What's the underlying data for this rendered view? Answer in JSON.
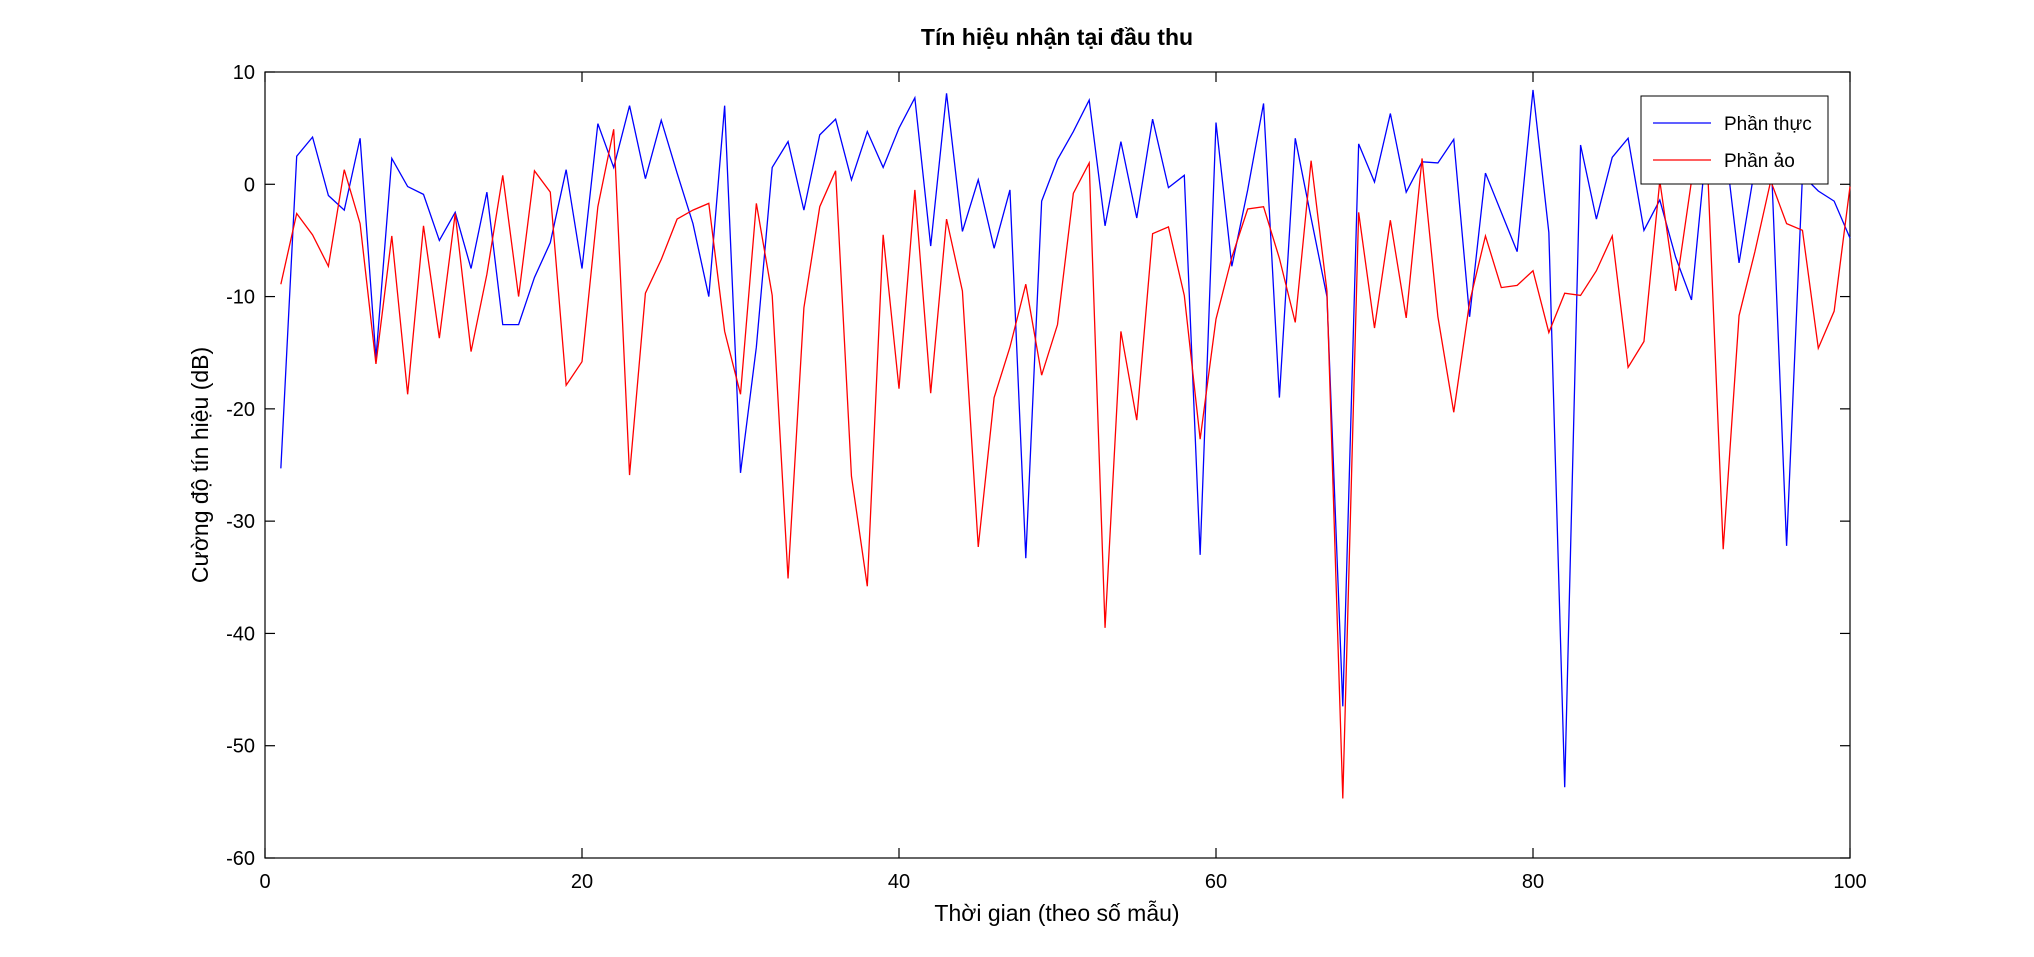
{
  "chart_data": {
    "type": "line",
    "title": "Tín hiệu nhận tại đầu thu",
    "xlabel": "Thời gian (theo số mẫu)",
    "ylabel": "Cường độ tín hiệu (dB)",
    "xlim": [
      0,
      100
    ],
    "ylim": [
      -60,
      10
    ],
    "xticks": [
      0,
      20,
      40,
      60,
      80,
      100
    ],
    "yticks": [
      10,
      0,
      -10,
      -20,
      -30,
      -40,
      -50,
      -60
    ],
    "grid": false,
    "legend_position": "top-right",
    "x": [
      1,
      2,
      3,
      4,
      5,
      6,
      7,
      8,
      9,
      10,
      11,
      12,
      13,
      14,
      15,
      16,
      17,
      18,
      19,
      20,
      21,
      22,
      23,
      24,
      25,
      26,
      27,
      28,
      29,
      30,
      31,
      32,
      33,
      34,
      35,
      36,
      37,
      38,
      39,
      40,
      41,
      42,
      43,
      44,
      45,
      46,
      47,
      48,
      49,
      50,
      51,
      52,
      53,
      54,
      55,
      56,
      57,
      58,
      59,
      60,
      61,
      62,
      63,
      64,
      65,
      66,
      67,
      68,
      69,
      70,
      71,
      72,
      73,
      74,
      75,
      76,
      77,
      78,
      79,
      80,
      81,
      82,
      83,
      84,
      85,
      86,
      87,
      88,
      89,
      90,
      91,
      92,
      93,
      94,
      95,
      96,
      97,
      98,
      99,
      100
    ],
    "series": [
      {
        "name": "Phần thực",
        "color": "#0000ff",
        "values": [
          -25.3,
          2.5,
          4.2,
          -1.0,
          -2.3,
          4.1,
          -15.5,
          2.3,
          -0.2,
          -0.9,
          -5.0,
          -2.5,
          -7.5,
          -0.7,
          -12.5,
          -12.5,
          -8.3,
          -5.2,
          1.3,
          -7.5,
          5.4,
          1.5,
          7.0,
          0.5,
          5.7,
          1.0,
          -3.5,
          -10.0,
          7.0,
          -25.7,
          -14.5,
          1.5,
          3.8,
          -2.3,
          4.4,
          5.8,
          0.4,
          4.7,
          1.5,
          5.0,
          7.7,
          -5.5,
          8.1,
          -4.2,
          0.4,
          -5.7,
          -0.5,
          -33.3,
          -1.5,
          2.2,
          4.7,
          7.5,
          -3.7,
          3.8,
          -3.0,
          5.8,
          -0.3,
          0.8,
          -33.0,
          5.5,
          -7.3,
          -0.5,
          7.2,
          -19.0,
          4.1,
          -3.0,
          -10.0,
          -46.5,
          3.6,
          0.2,
          6.3,
          -0.7,
          2.0,
          1.9,
          4.0,
          -11.8,
          1.0,
          -2.5,
          -6.0,
          8.4,
          -4.3,
          -53.7,
          3.5,
          -3.1,
          2.4,
          4.1,
          -4.1,
          -1.4,
          -6.5,
          -10.3,
          4.3,
          5.0,
          -7.0,
          1.5,
          3.2,
          -32.2,
          0.8,
          -0.6,
          -1.5,
          -4.8
        ]
      },
      {
        "name": "Phần ảo",
        "color": "#ff0000",
        "values": [
          -8.9,
          -2.6,
          -4.5,
          -7.3,
          1.3,
          -3.5,
          -16.0,
          -4.6,
          -18.7,
          -3.7,
          -13.7,
          -2.6,
          -14.9,
          -8.0,
          0.8,
          -10.0,
          1.2,
          -0.7,
          -17.9,
          -15.8,
          -2.0,
          4.9,
          -25.9,
          -9.7,
          -6.7,
          -3.1,
          -2.3,
          -1.7,
          -13.1,
          -18.7,
          -1.7,
          -9.9,
          -35.1,
          -11.0,
          -2.0,
          1.2,
          -26.0,
          -35.8,
          -4.5,
          -18.2,
          -0.5,
          -18.6,
          -3.1,
          -9.5,
          -32.3,
          -19.0,
          -14.5,
          -8.9,
          -17.0,
          -12.5,
          -0.8,
          1.9,
          -39.5,
          -13.1,
          -21.0,
          -4.4,
          -3.8,
          -9.9,
          -22.7,
          -12.0,
          -6.5,
          -2.2,
          -2.0,
          -6.6,
          -12.3,
          2.1,
          -9.5,
          -54.7,
          -2.5,
          -12.8,
          -3.2,
          -11.9,
          2.3,
          -11.8,
          -20.3,
          -10.5,
          -4.6,
          -9.2,
          -9.0,
          -7.7,
          -13.2,
          -9.7,
          -9.9,
          -7.7,
          -4.6,
          -16.3,
          -14.0,
          0.3,
          -9.5,
          0.3,
          2.0,
          -32.5,
          -11.7,
          -6.0,
          0.3,
          -3.5,
          -4.1,
          -14.6,
          -11.3,
          -0.2
        ]
      }
    ]
  }
}
